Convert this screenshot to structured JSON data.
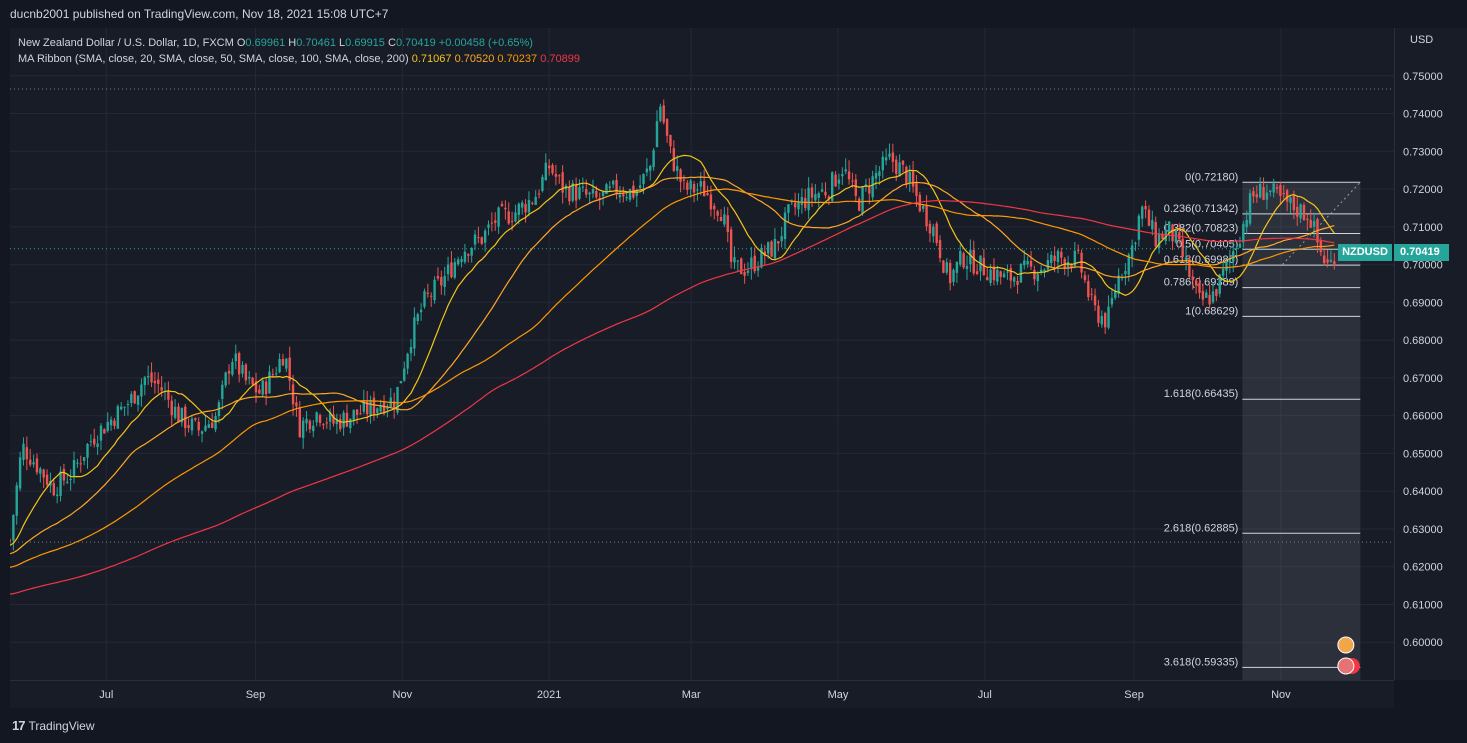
{
  "header": {
    "publish_line": "ducnb2001 published on TradingView.com, Nov 18, 2021 15:08 UTC+7"
  },
  "legend": {
    "symbol": "New Zealand Dollar / U.S. Dollar, 1D, FXCM",
    "o_label": "O",
    "o_value": "0.69961",
    "h_label": "H",
    "h_value": "0.70461",
    "l_label": "L",
    "l_value": "0.69915",
    "c_label": "C",
    "c_value": "0.70419",
    "change": "+0.00458 (+0.65%)",
    "ma_label": "MA Ribbon (SMA, close, 20, SMA, close, 50, SMA, close, 100, SMA, close, 200)",
    "ma20": "0.71067",
    "ma50": "0.70520",
    "ma100": "0.70237",
    "ma200": "0.70899"
  },
  "price_scale": {
    "currency": "USD",
    "last_symbol": "NZDUSD",
    "last_value": "0.70419"
  },
  "footer": {
    "brand": "TradingView"
  },
  "colors": {
    "up": "#26a69a",
    "down": "#ef5350",
    "ma20": "#f5c518",
    "ma50": "#ffa726",
    "ma100": "#ff9800",
    "ma200": "#f23645",
    "background": "#181c27"
  },
  "chart_data": {
    "type": "candlestick",
    "symbol": "NZDUSD",
    "timeframe": "1D",
    "ylim": [
      0.59,
      0.76
    ],
    "y_ticks": [
      "0.75000",
      "0.74000",
      "0.73000",
      "0.72000",
      "0.71000",
      "0.70000",
      "0.69000",
      "0.68000",
      "0.67000",
      "0.66000",
      "0.65000",
      "0.64000",
      "0.63000",
      "0.62000",
      "0.61000",
      "0.60000"
    ],
    "x_labels": [
      {
        "label": "Jul",
        "day": 40
      },
      {
        "label": "Sep",
        "day": 102
      },
      {
        "label": "Nov",
        "day": 163
      },
      {
        "label": "2021",
        "day": 224
      },
      {
        "label": "Mar",
        "day": 283
      },
      {
        "label": "May",
        "day": 344
      },
      {
        "label": "Jul",
        "day": 405
      },
      {
        "label": "Sep",
        "day": 467
      },
      {
        "label": "Nov",
        "day": 528
      }
    ],
    "x_range_days": [
      0,
      575
    ],
    "price_path": [
      [
        0,
        0.627
      ],
      [
        5,
        0.652
      ],
      [
        10,
        0.648
      ],
      [
        18,
        0.641
      ],
      [
        26,
        0.645
      ],
      [
        34,
        0.654
      ],
      [
        42,
        0.659
      ],
      [
        50,
        0.664
      ],
      [
        56,
        0.67
      ],
      [
        62,
        0.668
      ],
      [
        70,
        0.66
      ],
      [
        78,
        0.656
      ],
      [
        86,
        0.66
      ],
      [
        92,
        0.676
      ],
      [
        98,
        0.669
      ],
      [
        104,
        0.666
      ],
      [
        110,
        0.672
      ],
      [
        114,
        0.677
      ],
      [
        120,
        0.657
      ],
      [
        128,
        0.661
      ],
      [
        134,
        0.658
      ],
      [
        142,
        0.66
      ],
      [
        150,
        0.662
      ],
      [
        156,
        0.664
      ],
      [
        160,
        0.664
      ],
      [
        166,
        0.68
      ],
      [
        172,
        0.69
      ],
      [
        180,
        0.696
      ],
      [
        188,
        0.704
      ],
      [
        196,
        0.707
      ],
      [
        202,
        0.712
      ],
      [
        210,
        0.714
      ],
      [
        218,
        0.718
      ],
      [
        224,
        0.726
      ],
      [
        230,
        0.72
      ],
      [
        236,
        0.719
      ],
      [
        244,
        0.717
      ],
      [
        252,
        0.72
      ],
      [
        260,
        0.719
      ],
      [
        266,
        0.726
      ],
      [
        270,
        0.743
      ],
      [
        274,
        0.73
      ],
      [
        280,
        0.72
      ],
      [
        288,
        0.72
      ],
      [
        296,
        0.714
      ],
      [
        300,
        0.699
      ],
      [
        306,
        0.699
      ],
      [
        312,
        0.702
      ],
      [
        318,
        0.705
      ],
      [
        324,
        0.714
      ],
      [
        332,
        0.718
      ],
      [
        340,
        0.72
      ],
      [
        346,
        0.726
      ],
      [
        352,
        0.716
      ],
      [
        360,
        0.724
      ],
      [
        366,
        0.728
      ],
      [
        372,
        0.724
      ],
      [
        378,
        0.716
      ],
      [
        384,
        0.709
      ],
      [
        390,
        0.696
      ],
      [
        396,
        0.702
      ],
      [
        402,
        0.7
      ],
      [
        408,
        0.698
      ],
      [
        414,
        0.696
      ],
      [
        420,
        0.698
      ],
      [
        428,
        0.699
      ],
      [
        436,
        0.702
      ],
      [
        444,
        0.701
      ],
      [
        450,
        0.688
      ],
      [
        456,
        0.685
      ],
      [
        460,
        0.696
      ],
      [
        466,
        0.704
      ],
      [
        470,
        0.715
      ],
      [
        476,
        0.707
      ],
      [
        482,
        0.709
      ],
      [
        488,
        0.701
      ],
      [
        494,
        0.69
      ],
      [
        500,
        0.692
      ],
      [
        506,
        0.7
      ],
      [
        512,
        0.71
      ],
      [
        516,
        0.718
      ],
      [
        522,
        0.72
      ],
      [
        528,
        0.717
      ],
      [
        534,
        0.715
      ],
      [
        540,
        0.713
      ],
      [
        544,
        0.704
      ],
      [
        548,
        0.699
      ],
      [
        551,
        0.7042
      ]
    ],
    "moving_averages": [
      {
        "name": "SMA 20",
        "color": "#f5c518",
        "last": 0.71067
      },
      {
        "name": "SMA 50",
        "color": "#ffa726",
        "last": 0.7052
      },
      {
        "name": "SMA 100",
        "color": "#ff9800",
        "last": 0.70237
      },
      {
        "name": "SMA 200",
        "color": "#f23645",
        "last": 0.70899
      }
    ],
    "horizontal_lines": [
      0.7465,
      0.6265
    ],
    "last_price": 0.70419,
    "fibonacci": {
      "start_day": 512,
      "end_day": 561,
      "levels": [
        {
          "label": "0(0.72180)",
          "value": 0.7218
        },
        {
          "label": "0.236(0.71342)",
          "value": 0.71342
        },
        {
          "label": "0.382(0.70823)",
          "value": 0.70823
        },
        {
          "label": "0.5(0.70405)",
          "value": 0.70405
        },
        {
          "label": "0.618(0.69985)",
          "value": 0.69985
        },
        {
          "label": "0.786(0.69389)",
          "value": 0.69389
        },
        {
          "label": "1(0.68629)",
          "value": 0.68629
        },
        {
          "label": "1.618(0.66435)",
          "value": 0.66435
        },
        {
          "label": "2.618(0.62885)",
          "value": 0.62885
        },
        {
          "label": "3.618(0.59335)",
          "value": 0.59335
        }
      ]
    }
  }
}
